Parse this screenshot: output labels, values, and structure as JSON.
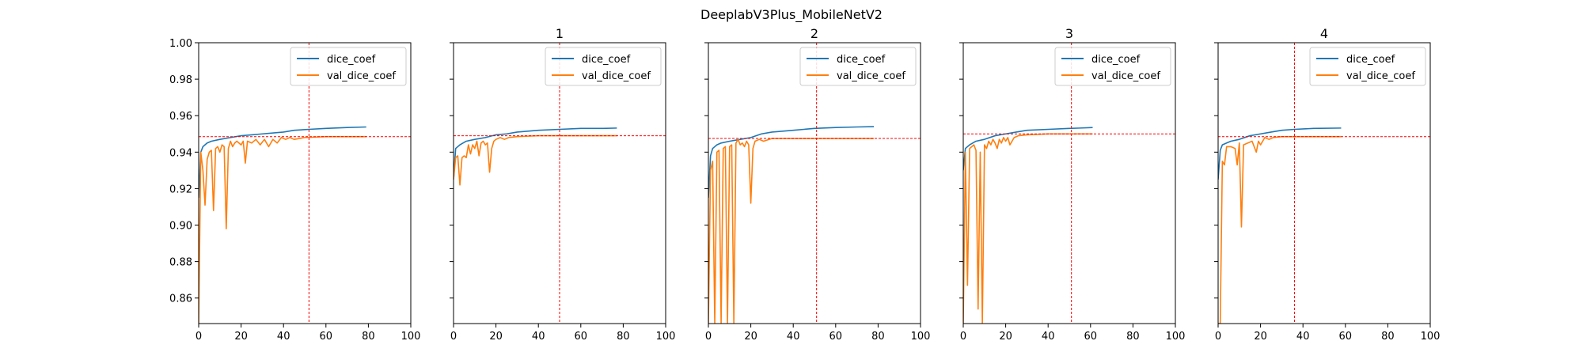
{
  "figure_title": "DeeplabV3Plus_MobileNetV2",
  "chart_data": [
    {
      "type": "line",
      "title": "",
      "xlim": [
        0,
        100
      ],
      "ylim": [
        0.846,
        1.0
      ],
      "x_ticks": [
        0,
        20,
        40,
        60,
        80,
        100
      ],
      "y_ticks": [
        0.86,
        0.88,
        0.9,
        0.92,
        0.94,
        0.96,
        0.98,
        1.0
      ],
      "y_tick_labels_visible": true,
      "legend": {
        "placement": "top-right",
        "entries": [
          "dice_coef",
          "val_dice_coef"
        ]
      },
      "vline_x": 52,
      "hline_y": 0.9485,
      "series": [
        {
          "name": "dice_coef",
          "color": "#1f77b4",
          "points": [
            [
              0,
              0.915
            ],
            [
              1,
              0.94
            ],
            [
              2,
              0.943
            ],
            [
              4,
              0.945
            ],
            [
              6,
              0.946
            ],
            [
              10,
              0.947
            ],
            [
              15,
              0.948
            ],
            [
              20,
              0.949
            ],
            [
              25,
              0.9495
            ],
            [
              30,
              0.95
            ],
            [
              40,
              0.951
            ],
            [
              45,
              0.952
            ],
            [
              52,
              0.9525
            ],
            [
              60,
              0.953
            ],
            [
              70,
              0.9535
            ],
            [
              79,
              0.9538
            ]
          ]
        },
        {
          "name": "val_dice_coef",
          "color": "#ff7f0e",
          "points": [
            [
              0,
              0.846
            ],
            [
              1,
              0.94
            ],
            [
              2,
              0.93
            ],
            [
              3,
              0.911
            ],
            [
              4,
              0.936
            ],
            [
              5,
              0.94
            ],
            [
              6,
              0.941
            ],
            [
              7,
              0.908
            ],
            [
              8,
              0.942
            ],
            [
              9,
              0.943
            ],
            [
              10,
              0.94
            ],
            [
              11,
              0.944
            ],
            [
              12,
              0.943
            ],
            [
              13,
              0.898
            ],
            [
              14,
              0.942
            ],
            [
              15,
              0.946
            ],
            [
              16,
              0.943
            ],
            [
              17,
              0.945
            ],
            [
              18,
              0.946
            ],
            [
              20,
              0.944
            ],
            [
              21,
              0.946
            ],
            [
              22,
              0.934
            ],
            [
              23,
              0.946
            ],
            [
              25,
              0.945
            ],
            [
              27,
              0.947
            ],
            [
              29,
              0.944
            ],
            [
              31,
              0.947
            ],
            [
              33,
              0.943
            ],
            [
              35,
              0.947
            ],
            [
              37,
              0.945
            ],
            [
              39,
              0.948
            ],
            [
              41,
              0.947
            ],
            [
              43,
              0.948
            ],
            [
              45,
              0.947
            ],
            [
              50,
              0.948
            ],
            [
              60,
              0.9485
            ],
            [
              70,
              0.9485
            ],
            [
              79,
              0.9485
            ]
          ]
        }
      ]
    },
    {
      "type": "line",
      "title": "1",
      "xlim": [
        0,
        100
      ],
      "ylim": [
        0.846,
        1.0
      ],
      "x_ticks": [
        0,
        20,
        40,
        60,
        80,
        100
      ],
      "y_ticks": [
        0.86,
        0.88,
        0.9,
        0.92,
        0.94,
        0.96,
        0.98,
        1.0
      ],
      "y_tick_labels_visible": false,
      "legend": {
        "placement": "top-right",
        "entries": [
          "dice_coef",
          "val_dice_coef"
        ]
      },
      "vline_x": 50,
      "hline_y": 0.949,
      "series": [
        {
          "name": "dice_coef",
          "color": "#1f77b4",
          "points": [
            [
              0,
              0.925
            ],
            [
              1,
              0.942
            ],
            [
              3,
              0.944
            ],
            [
              6,
              0.946
            ],
            [
              10,
              0.947
            ],
            [
              15,
              0.948
            ],
            [
              20,
              0.9495
            ],
            [
              25,
              0.95
            ],
            [
              30,
              0.951
            ],
            [
              40,
              0.952
            ],
            [
              50,
              0.9525
            ],
            [
              60,
              0.953
            ],
            [
              70,
              0.953
            ],
            [
              77,
              0.9532
            ]
          ]
        },
        {
          "name": "val_dice_coef",
          "color": "#ff7f0e",
          "points": [
            [
              0,
              0.925
            ],
            [
              1,
              0.937
            ],
            [
              2,
              0.938
            ],
            [
              3,
              0.922
            ],
            [
              4,
              0.937
            ],
            [
              5,
              0.938
            ],
            [
              6,
              0.937
            ],
            [
              7,
              0.944
            ],
            [
              8,
              0.939
            ],
            [
              9,
              0.944
            ],
            [
              10,
              0.942
            ],
            [
              11,
              0.946
            ],
            [
              12,
              0.938
            ],
            [
              13,
              0.945
            ],
            [
              14,
              0.946
            ],
            [
              15,
              0.944
            ],
            [
              16,
              0.945
            ],
            [
              17,
              0.929
            ],
            [
              18,
              0.942
            ],
            [
              19,
              0.946
            ],
            [
              20,
              0.947
            ],
            [
              22,
              0.948
            ],
            [
              24,
              0.947
            ],
            [
              26,
              0.948
            ],
            [
              30,
              0.9485
            ],
            [
              40,
              0.949
            ],
            [
              50,
              0.949
            ],
            [
              60,
              0.949
            ],
            [
              70,
              0.949
            ],
            [
              77,
              0.949
            ]
          ]
        }
      ]
    },
    {
      "type": "line",
      "title": "2",
      "xlim": [
        0,
        100
      ],
      "ylim": [
        0.846,
        1.0
      ],
      "x_ticks": [
        0,
        20,
        40,
        60,
        80,
        100
      ],
      "y_ticks": [
        0.86,
        0.88,
        0.9,
        0.92,
        0.94,
        0.96,
        0.98,
        1.0
      ],
      "y_tick_labels_visible": false,
      "legend": {
        "placement": "top-right",
        "entries": [
          "dice_coef",
          "val_dice_coef"
        ]
      },
      "vline_x": 51,
      "hline_y": 0.9475,
      "series": [
        {
          "name": "dice_coef",
          "color": "#1f77b4",
          "points": [
            [
              0,
              0.915
            ],
            [
              1,
              0.938
            ],
            [
              2,
              0.942
            ],
            [
              4,
              0.944
            ],
            [
              6,
              0.945
            ],
            [
              10,
              0.946
            ],
            [
              15,
              0.947
            ],
            [
              20,
              0.948
            ],
            [
              25,
              0.95
            ],
            [
              30,
              0.951
            ],
            [
              40,
              0.952
            ],
            [
              50,
              0.953
            ],
            [
              60,
              0.9535
            ],
            [
              70,
              0.9538
            ],
            [
              78,
              0.954
            ]
          ]
        },
        {
          "name": "val_dice_coef",
          "color": "#ff7f0e",
          "points": [
            [
              0,
              0.846
            ],
            [
              1,
              0.93
            ],
            [
              2,
              0.935
            ],
            [
              3,
              0.846
            ],
            [
              4,
              0.94
            ],
            [
              5,
              0.941
            ],
            [
              6,
              0.846
            ],
            [
              7,
              0.942
            ],
            [
              8,
              0.943
            ],
            [
              9,
              0.846
            ],
            [
              10,
              0.943
            ],
            [
              11,
              0.944
            ],
            [
              12,
              0.846
            ],
            [
              13,
              0.945
            ],
            [
              14,
              0.947
            ],
            [
              15,
              0.944
            ],
            [
              16,
              0.945
            ],
            [
              17,
              0.943
            ],
            [
              18,
              0.946
            ],
            [
              19,
              0.944
            ],
            [
              20,
              0.912
            ],
            [
              21,
              0.942
            ],
            [
              22,
              0.946
            ],
            [
              24,
              0.947
            ],
            [
              26,
              0.946
            ],
            [
              30,
              0.9475
            ],
            [
              40,
              0.9475
            ],
            [
              50,
              0.9475
            ],
            [
              60,
              0.9475
            ],
            [
              70,
              0.9475
            ],
            [
              78,
              0.9475
            ]
          ]
        }
      ]
    },
    {
      "type": "line",
      "title": "3",
      "xlim": [
        0,
        100
      ],
      "ylim": [
        0.846,
        1.0
      ],
      "x_ticks": [
        0,
        20,
        40,
        60,
        80,
        100
      ],
      "y_ticks": [
        0.86,
        0.88,
        0.9,
        0.92,
        0.94,
        0.96,
        0.98,
        1.0
      ],
      "y_tick_labels_visible": false,
      "legend": {
        "placement": "top-right",
        "entries": [
          "dice_coef",
          "val_dice_coef"
        ]
      },
      "vline_x": 51,
      "hline_y": 0.95,
      "series": [
        {
          "name": "dice_coef",
          "color": "#1f77b4",
          "points": [
            [
              0,
              0.93
            ],
            [
              1,
              0.942
            ],
            [
              3,
              0.944
            ],
            [
              6,
              0.946
            ],
            [
              10,
              0.947
            ],
            [
              15,
              0.949
            ],
            [
              20,
              0.95
            ],
            [
              25,
              0.951
            ],
            [
              30,
              0.952
            ],
            [
              40,
              0.9525
            ],
            [
              50,
              0.953
            ],
            [
              55,
              0.9532
            ],
            [
              61,
              0.9535
            ]
          ]
        },
        {
          "name": "val_dice_coef",
          "color": "#ff7f0e",
          "points": [
            [
              0,
              0.846
            ],
            [
              1,
              0.94
            ],
            [
              2,
              0.867
            ],
            [
              3,
              0.942
            ],
            [
              4,
              0.943
            ],
            [
              5,
              0.944
            ],
            [
              6,
              0.941
            ],
            [
              7,
              0.854
            ],
            [
              8,
              0.94
            ],
            [
              9,
              0.846
            ],
            [
              10,
              0.944
            ],
            [
              11,
              0.942
            ],
            [
              12,
              0.946
            ],
            [
              13,
              0.944
            ],
            [
              14,
              0.947
            ],
            [
              15,
              0.945
            ],
            [
              16,
              0.942
            ],
            [
              17,
              0.947
            ],
            [
              18,
              0.945
            ],
            [
              19,
              0.948
            ],
            [
              20,
              0.946
            ],
            [
              21,
              0.948
            ],
            [
              22,
              0.944
            ],
            [
              24,
              0.948
            ],
            [
              26,
              0.949
            ],
            [
              30,
              0.9495
            ],
            [
              40,
              0.95
            ],
            [
              50,
              0.95
            ],
            [
              61,
              0.95
            ]
          ]
        }
      ]
    },
    {
      "type": "line",
      "title": "4",
      "xlim": [
        0,
        100
      ],
      "ylim": [
        0.846,
        1.0
      ],
      "x_ticks": [
        0,
        20,
        40,
        60,
        80,
        100
      ],
      "y_ticks": [
        0.86,
        0.88,
        0.9,
        0.92,
        0.94,
        0.96,
        0.98,
        1.0
      ],
      "y_tick_labels_visible": false,
      "legend": {
        "placement": "top-right",
        "entries": [
          "dice_coef",
          "val_dice_coef"
        ]
      },
      "vline_x": 36,
      "hline_y": 0.9485,
      "series": [
        {
          "name": "dice_coef",
          "color": "#1f77b4",
          "points": [
            [
              0,
              0.925
            ],
            [
              1,
              0.941
            ],
            [
              2,
              0.944
            ],
            [
              4,
              0.945
            ],
            [
              6,
              0.946
            ],
            [
              10,
              0.947
            ],
            [
              15,
              0.949
            ],
            [
              20,
              0.95
            ],
            [
              25,
              0.951
            ],
            [
              30,
              0.952
            ],
            [
              36,
              0.9525
            ],
            [
              45,
              0.953
            ],
            [
              58,
              0.9532
            ]
          ]
        },
        {
          "name": "val_dice_coef",
          "color": "#ff7f0e",
          "points": [
            [
              0,
              0.846
            ],
            [
              1,
              0.846
            ],
            [
              2,
              0.935
            ],
            [
              3,
              0.933
            ],
            [
              4,
              0.943
            ],
            [
              6,
              0.943
            ],
            [
              8,
              0.942
            ],
            [
              9,
              0.933
            ],
            [
              10,
              0.945
            ],
            [
              11,
              0.899
            ],
            [
              12,
              0.944
            ],
            [
              14,
              0.945
            ],
            [
              16,
              0.946
            ],
            [
              18,
              0.94
            ],
            [
              19,
              0.946
            ],
            [
              20,
              0.944
            ],
            [
              22,
              0.948
            ],
            [
              24,
              0.947
            ],
            [
              26,
              0.948
            ],
            [
              30,
              0.9485
            ],
            [
              36,
              0.9485
            ],
            [
              45,
              0.9485
            ],
            [
              58,
              0.9485
            ]
          ]
        }
      ]
    }
  ]
}
